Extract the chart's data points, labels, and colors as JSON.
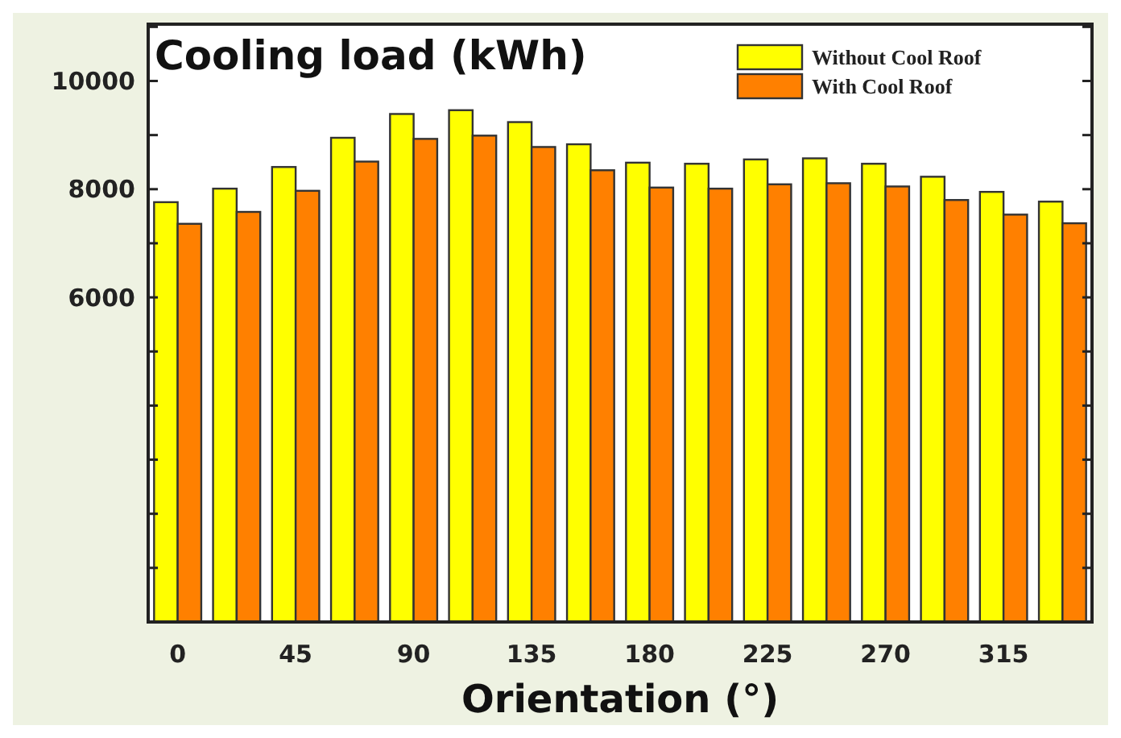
{
  "chart_data": {
    "type": "bar",
    "title": "Cooling load (kWh)",
    "xlabel": "Orientation (°)",
    "categories": [
      "0",
      null,
      "45",
      null,
      "90",
      null,
      "135",
      null,
      "180",
      null,
      "225",
      null,
      "270",
      null,
      "315",
      null
    ],
    "series": [
      {
        "name": "Without Cool Roof",
        "color": "#ffff00",
        "values": [
          7760,
          8010,
          8410,
          8950,
          9390,
          9460,
          9240,
          8830,
          8490,
          8470,
          8550,
          8570,
          8470,
          8230,
          7950,
          7770
        ]
      },
      {
        "name": "With Cool Roof",
        "color": "#ff8000",
        "values": [
          7360,
          7580,
          7970,
          8510,
          8930,
          8990,
          8780,
          8350,
          8030,
          8010,
          8090,
          8110,
          8050,
          7800,
          7530,
          7370
        ]
      }
    ],
    "ylim": [
      0,
      11050
    ],
    "yticks": [
      {
        "value": 0,
        "label": null
      },
      {
        "value": 1000,
        "label": null
      },
      {
        "value": 2000,
        "label": null
      },
      {
        "value": 3000,
        "label": null
      },
      {
        "value": 4000,
        "label": null
      },
      {
        "value": 5000,
        "label": null
      },
      6000,
      {
        "value": 7000,
        "label": null
      },
      8000,
      {
        "value": 9000,
        "label": null
      },
      10000,
      {
        "value": 11000,
        "label": null
      }
    ],
    "grid": false,
    "legend": "top right"
  }
}
